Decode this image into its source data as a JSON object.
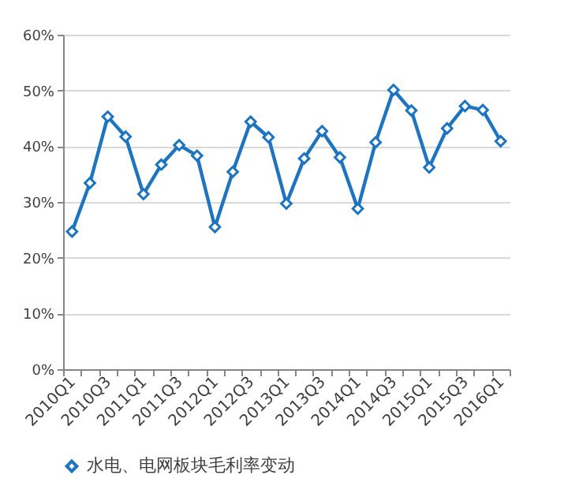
{
  "chart_data": {
    "type": "line",
    "categories": [
      "2010Q1",
      null,
      "2010Q3",
      null,
      "2011Q1",
      null,
      "2011Q3",
      null,
      "2012Q1",
      null,
      "2012Q3",
      null,
      "2013Q1",
      null,
      "2013Q3",
      null,
      "2014Q1",
      null,
      "2014Q3",
      null,
      "2015Q1",
      null,
      "2015Q3",
      null,
      "2016Q1"
    ],
    "series": [
      {
        "name": "水电、电网板块毛利率变动",
        "color": "#1f74c0",
        "values": [
          24.7,
          33.4,
          45.3,
          41.7,
          31.4,
          36.7,
          40.2,
          38.3,
          25.5,
          35.4,
          44.4,
          41.6,
          29.7,
          37.8,
          42.7,
          38.0,
          28.8,
          40.7,
          50.1,
          46.4,
          36.2,
          43.2,
          47.2,
          46.5,
          40.9
        ]
      }
    ],
    "ylim": [
      0,
      60
    ],
    "yticks": [
      {
        "value": 0,
        "label": "0%"
      },
      {
        "value": 10,
        "label": "10%"
      },
      {
        "value": 20,
        "label": "20%"
      },
      {
        "value": 30,
        "label": "30%"
      },
      {
        "value": 40,
        "label": "40%"
      },
      {
        "value": 50,
        "label": "50%"
      },
      {
        "value": 60,
        "label": "60%"
      }
    ],
    "grid": "y",
    "legend": "bottom",
    "marker": "diamond",
    "line_style": "solid"
  }
}
